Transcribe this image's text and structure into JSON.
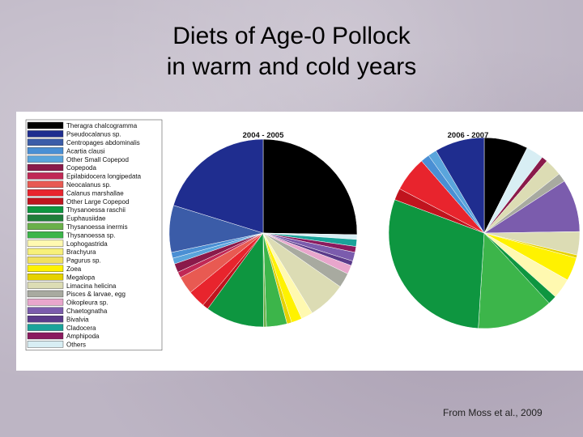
{
  "slide": {
    "title_line1": "Diets of Age-0 Pollock",
    "title_line2": "in warm and cold years",
    "credit": "From Moss et al., 2009"
  },
  "chart_data": {
    "type": "pie",
    "legend": {
      "placement": "left",
      "entries": [
        {
          "name": "Theragra chalcogramma",
          "color": "#000000"
        },
        {
          "name": "Pseudocalanus sp.",
          "color": "#1f2d8f"
        },
        {
          "name": "Centropages abdominalis",
          "color": "#3b5ca8"
        },
        {
          "name": "Acartia clausi",
          "color": "#4a8fd4"
        },
        {
          "name": "Other Small Copepod",
          "color": "#5aa5dc"
        },
        {
          "name": "Copepoda",
          "color": "#8a1a4a"
        },
        {
          "name": "Epilabidocera longipedata",
          "color": "#c02855"
        },
        {
          "name": "Neocalanus sp.",
          "color": "#e85a52"
        },
        {
          "name": "Calanus marshallae",
          "color": "#e8242d"
        },
        {
          "name": "Other Large Copepod",
          "color": "#c0141e"
        },
        {
          "name": "Thysanoessa raschii",
          "color": "#0e9640"
        },
        {
          "name": "Euphausiidae",
          "color": "#1f7d3a"
        },
        {
          "name": "Thysanoessa inermis",
          "color": "#6ab04a"
        },
        {
          "name": "Thysanoessa sp.",
          "color": "#3cb54a"
        },
        {
          "name": "Lophogastrida",
          "color": "#fff9b0"
        },
        {
          "name": "Brachyura",
          "color": "#f7f07a"
        },
        {
          "name": "Pagurus sp.",
          "color": "#f0e060"
        },
        {
          "name": "Zoea",
          "color": "#fff200"
        },
        {
          "name": "Megalopa",
          "color": "#e6d200"
        },
        {
          "name": "Limacina helicina",
          "color": "#dcdcb4"
        },
        {
          "name": "Pisces & larvae, egg",
          "color": "#a8aaa0"
        },
        {
          "name": "Oikopleura sp.",
          "color": "#e8a6cc"
        },
        {
          "name": "Chaetognatha",
          "color": "#7b5cad"
        },
        {
          "name": "Bivalvia",
          "color": "#5a3a8a"
        },
        {
          "name": "Cladocera",
          "color": "#1aa39a"
        },
        {
          "name": "Amphipoda",
          "color": "#8a1a5e"
        },
        {
          "name": "Others",
          "color": "#d8eef4"
        }
      ]
    },
    "pies": [
      {
        "title": "2004 - 2005",
        "slices": [
          {
            "label": "Theragra chalcogramma",
            "value": 25
          },
          {
            "label": "Others",
            "value": 0.8
          },
          {
            "label": "Cladocera",
            "value": 1.2
          },
          {
            "label": "Amphipoda",
            "value": 1.0
          },
          {
            "label": "Chaetognatha",
            "value": 1.5
          },
          {
            "label": "Bivalvia",
            "value": 0.8
          },
          {
            "label": "Oikopleura sp.",
            "value": 1.5
          },
          {
            "label": "Pisces & larvae, egg",
            "value": 2.5
          },
          {
            "label": "Limacina helicina",
            "value": 6.5
          },
          {
            "label": "Lophogastrida",
            "value": 2.0
          },
          {
            "label": "Zoea",
            "value": 1.8
          },
          {
            "label": "Megalopa",
            "value": 0.8
          },
          {
            "label": "Thysanoessa sp.",
            "value": 3.5
          },
          {
            "label": "Thysanoessa inermis",
            "value": 0.5
          },
          {
            "label": "Thysanoessa raschii",
            "value": 10
          },
          {
            "label": "Other Large Copepod",
            "value": 1.0
          },
          {
            "label": "Calanus marshallae",
            "value": 3.0
          },
          {
            "label": "Neocalanus sp.",
            "value": 3.0
          },
          {
            "label": "Epilabidocera longipedata",
            "value": 1.0
          },
          {
            "label": "Copepoda",
            "value": 1.5
          },
          {
            "label": "Other Small Copepod",
            "value": 1.0
          },
          {
            "label": "Acartia clausi",
            "value": 1.0
          },
          {
            "label": "Centropages abdominalis",
            "value": 8.0
          },
          {
            "label": "Pseudocalanus sp.",
            "value": 20
          }
        ]
      },
      {
        "title": "2006 - 2007",
        "slices": [
          {
            "label": "Theragra chalcogramma",
            "value": 7.5
          },
          {
            "label": "Others",
            "value": 3.0
          },
          {
            "label": "Copepoda",
            "value": 1.0
          },
          {
            "label": "Limacina helicina",
            "value": 3.0
          },
          {
            "label": "Pisces & larvae, egg",
            "value": 1.5
          },
          {
            "label": "Chaetognatha",
            "value": 9.0
          },
          {
            "label": "Limacina helicina",
            "value": 4.0
          },
          {
            "label": "Megalopa",
            "value": 0.5
          },
          {
            "label": "Zoea",
            "value": 4.0
          },
          {
            "label": "Lophogastrida",
            "value": 3.5
          },
          {
            "label": "Thysanoessa raschii",
            "value": 1.5
          },
          {
            "label": "Thysanoessa sp.",
            "value": 13
          },
          {
            "label": "Thysanoessa raschii",
            "value": 30
          },
          {
            "label": "Other Large Copepod",
            "value": 2.0
          },
          {
            "label": "Calanus marshallae",
            "value": 6.0
          },
          {
            "label": "Acartia clausi",
            "value": 1.5
          },
          {
            "label": "Other Small Copepod",
            "value": 1.5
          },
          {
            "label": "Pseudocalanus sp.",
            "value": 8.5
          }
        ]
      }
    ]
  }
}
